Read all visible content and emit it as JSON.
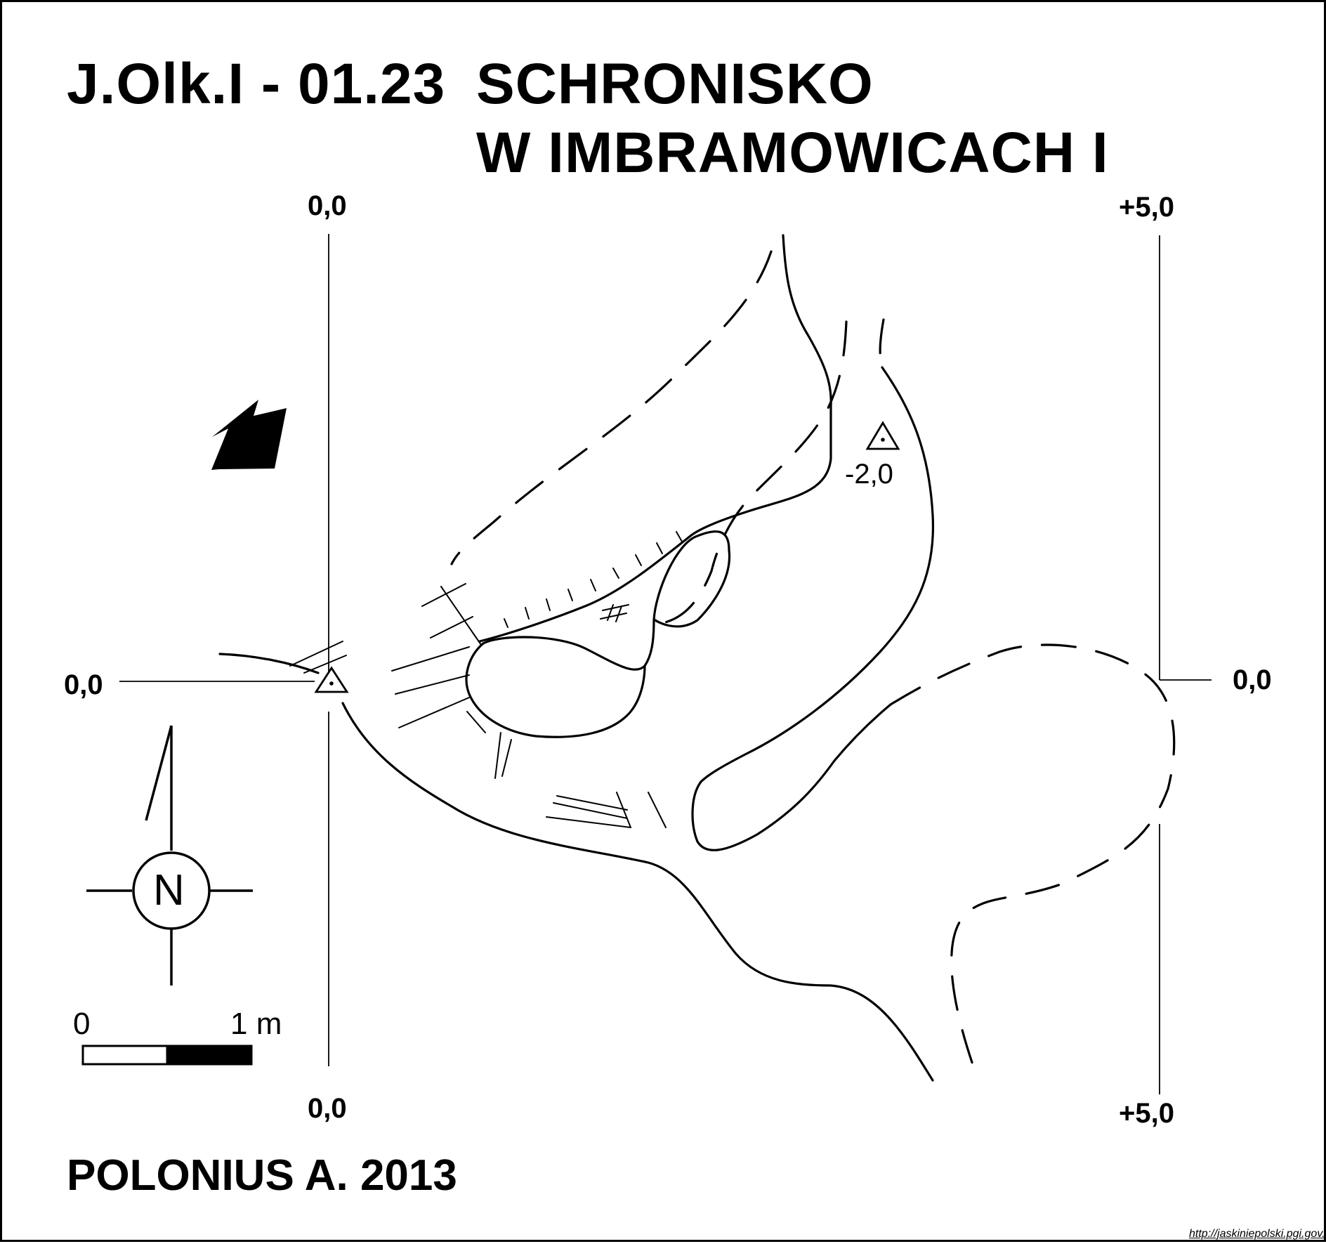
{
  "title": {
    "code": "J.Olk.I - 01.23",
    "name_line1": "SCHRONISKO",
    "name_line2": "W IMBRAMOWICACH I"
  },
  "grid_labels": {
    "top_left": "0,0",
    "top_right": "+5,0",
    "left_middle": "0,0",
    "right_middle": "0,0",
    "bottom_left": "0,0",
    "bottom_right": "+5,0"
  },
  "survey_point": {
    "depth": "-2,0"
  },
  "compass": {
    "letter": "N"
  },
  "scale_bar": {
    "start_label": "0",
    "end_label": "1 m"
  },
  "author": "POLONIUS A. 2013",
  "source_url": "http://jaskiniepolski.pgi.gov.pl"
}
